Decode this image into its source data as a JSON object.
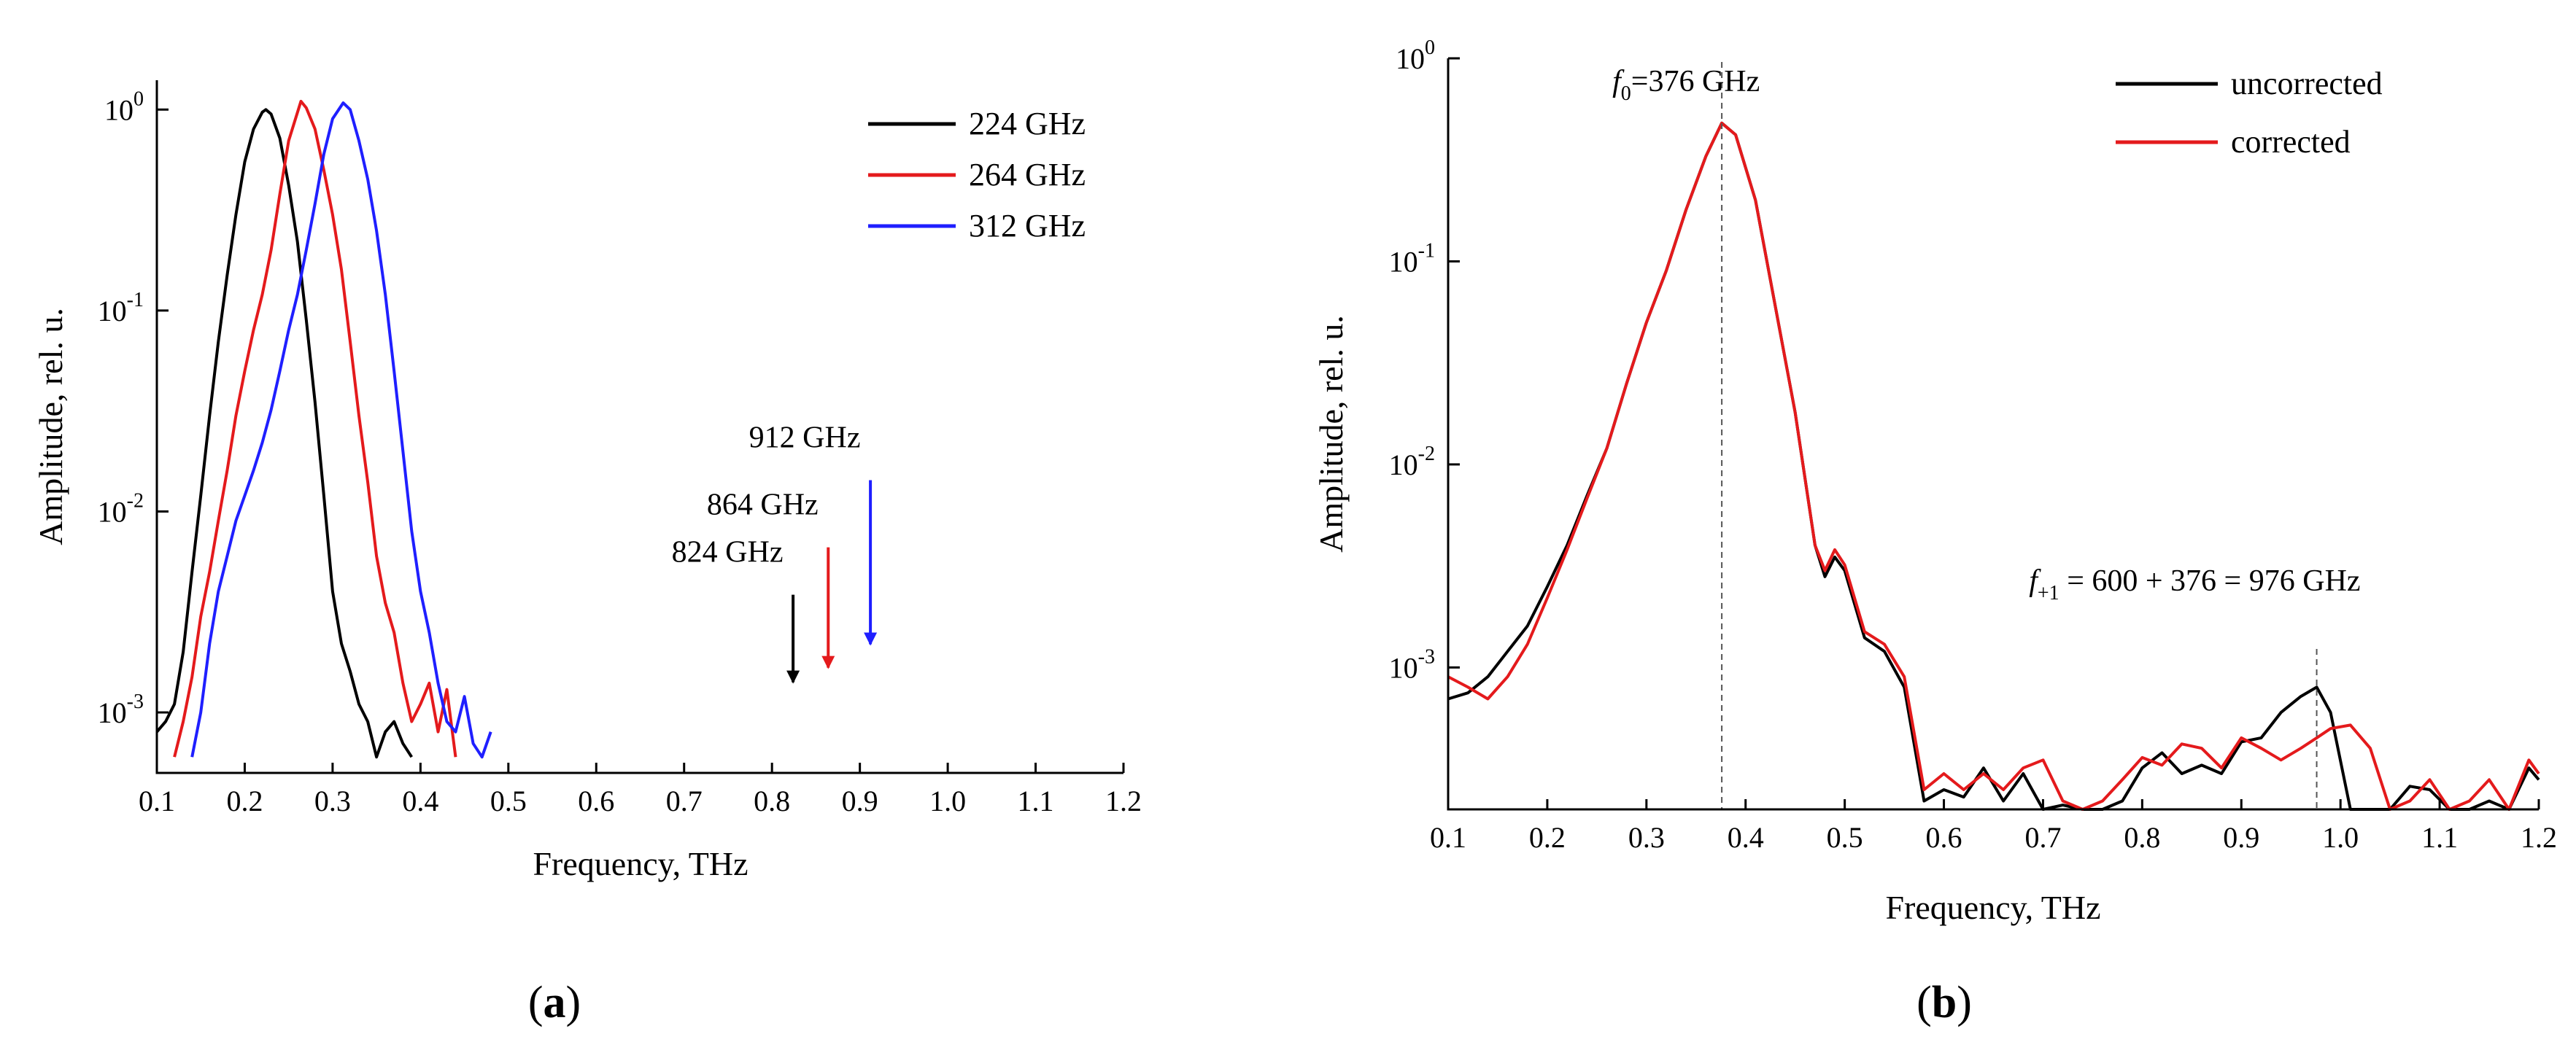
{
  "chart_data": [
    {
      "type": "line",
      "panel_label": "a",
      "xlabel": "Frequency, THz",
      "ylabel": "Amplitude, rel. u.",
      "xlim": [
        0.1,
        1.2
      ],
      "ylim": [
        0.0005,
        1.4
      ],
      "yscale": "log",
      "xticks": [
        "0.1",
        "0.2",
        "0.3",
        "0.4",
        "0.5",
        "0.6",
        "0.7",
        "0.8",
        "0.9",
        "1.0",
        "1.1",
        "1.2"
      ],
      "yticks": [
        {
          "base": "10",
          "exp": "0",
          "value": 1
        },
        {
          "base": "10",
          "exp": "-1",
          "value": 0.1
        },
        {
          "base": "10",
          "exp": "-2",
          "value": 0.01
        },
        {
          "base": "10",
          "exp": "-3",
          "value": 0.001
        }
      ],
      "legend_position": "top-right",
      "series": [
        {
          "name": "224 GHz",
          "color": "#000000",
          "x": [
            0.1,
            0.11,
            0.12,
            0.13,
            0.14,
            0.15,
            0.16,
            0.17,
            0.18,
            0.19,
            0.2,
            0.21,
            0.22,
            0.224,
            0.23,
            0.24,
            0.25,
            0.26,
            0.27,
            0.28,
            0.29,
            0.3,
            0.31,
            0.32,
            0.33,
            0.34,
            0.35,
            0.36,
            0.37,
            0.38,
            0.39
          ],
          "y": [
            0.0008,
            0.0009,
            0.0011,
            0.002,
            0.005,
            0.012,
            0.03,
            0.07,
            0.15,
            0.3,
            0.55,
            0.8,
            0.97,
            1.0,
            0.95,
            0.72,
            0.42,
            0.22,
            0.09,
            0.035,
            0.012,
            0.004,
            0.0022,
            0.0016,
            0.0011,
            0.0009,
            0.0006,
            0.0008,
            0.0009,
            0.0007,
            0.0006
          ]
        },
        {
          "name": "264 GHz",
          "color": "#e41a1c",
          "x": [
            0.12,
            0.13,
            0.14,
            0.15,
            0.16,
            0.17,
            0.18,
            0.19,
            0.2,
            0.21,
            0.22,
            0.23,
            0.24,
            0.25,
            0.264,
            0.27,
            0.28,
            0.29,
            0.3,
            0.31,
            0.32,
            0.33,
            0.34,
            0.35,
            0.36,
            0.37,
            0.38,
            0.39,
            0.4,
            0.41,
            0.42,
            0.43,
            0.44
          ],
          "y": [
            0.0006,
            0.0009,
            0.0015,
            0.003,
            0.005,
            0.009,
            0.016,
            0.03,
            0.05,
            0.08,
            0.12,
            0.2,
            0.38,
            0.7,
            1.1,
            1.02,
            0.8,
            0.5,
            0.3,
            0.16,
            0.07,
            0.03,
            0.014,
            0.006,
            0.0035,
            0.0025,
            0.0014,
            0.0009,
            0.0011,
            0.0014,
            0.0008,
            0.0013,
            0.0006
          ]
        },
        {
          "name": "312 GHz",
          "color": "#1f1fff",
          "x": [
            0.14,
            0.15,
            0.16,
            0.17,
            0.18,
            0.19,
            0.2,
            0.21,
            0.22,
            0.23,
            0.24,
            0.25,
            0.26,
            0.27,
            0.28,
            0.29,
            0.3,
            0.312,
            0.32,
            0.33,
            0.34,
            0.35,
            0.36,
            0.37,
            0.38,
            0.39,
            0.4,
            0.41,
            0.42,
            0.43,
            0.44,
            0.45,
            0.46,
            0.47,
            0.48
          ],
          "y": [
            0.0006,
            0.001,
            0.0022,
            0.004,
            0.006,
            0.009,
            0.012,
            0.016,
            0.022,
            0.032,
            0.05,
            0.08,
            0.12,
            0.2,
            0.34,
            0.6,
            0.9,
            1.08,
            1.0,
            0.7,
            0.45,
            0.25,
            0.12,
            0.05,
            0.02,
            0.008,
            0.004,
            0.0025,
            0.0014,
            0.0009,
            0.0008,
            0.0012,
            0.0007,
            0.0006,
            0.0008
          ]
        }
      ],
      "annotations": [
        {
          "text": "824 GHz",
          "x": 0.824,
          "y": 0.0011,
          "color": "#000000"
        },
        {
          "text": "864 GHz",
          "x": 0.864,
          "y": 0.0013,
          "color": "#e41a1c"
        },
        {
          "text": "912 GHz",
          "x": 0.912,
          "y": 0.0017,
          "color": "#1f1fff"
        }
      ]
    },
    {
      "type": "line",
      "panel_label": "b",
      "xlabel": "Frequency, THz",
      "ylabel": "Amplitude, rel. u.",
      "xlim": [
        0.1,
        1.2
      ],
      "ylim": [
        0.0002,
        1.0
      ],
      "yscale": "log",
      "xticks": [
        "0.1",
        "0.2",
        "0.3",
        "0.4",
        "0.5",
        "0.6",
        "0.7",
        "0.8",
        "0.9",
        "1.0",
        "1.1",
        "1.2"
      ],
      "yticks": [
        {
          "base": "10",
          "exp": "0",
          "value": 1
        },
        {
          "base": "10",
          "exp": "-1",
          "value": 0.1
        },
        {
          "base": "10",
          "exp": "-2",
          "value": 0.01
        },
        {
          "base": "10",
          "exp": "-3",
          "value": 0.001
        }
      ],
      "legend_position": "top-right",
      "series": [
        {
          "name": "uncorrected",
          "color": "#000000",
          "x": [
            0.1,
            0.12,
            0.14,
            0.16,
            0.18,
            0.2,
            0.22,
            0.24,
            0.26,
            0.28,
            0.3,
            0.32,
            0.34,
            0.36,
            0.376,
            0.39,
            0.41,
            0.43,
            0.45,
            0.47,
            0.48,
            0.49,
            0.5,
            0.52,
            0.54,
            0.56,
            0.58,
            0.6,
            0.62,
            0.64,
            0.66,
            0.68,
            0.7,
            0.72,
            0.74,
            0.76,
            0.78,
            0.8,
            0.82,
            0.84,
            0.86,
            0.88,
            0.9,
            0.92,
            0.94,
            0.96,
            0.976,
            0.99,
            1.01,
            1.03,
            1.05,
            1.07,
            1.09,
            1.11,
            1.13,
            1.15,
            1.17,
            1.19,
            1.2
          ],
          "y": [
            0.0007,
            0.00075,
            0.0009,
            0.0012,
            0.0016,
            0.0025,
            0.004,
            0.007,
            0.012,
            0.025,
            0.05,
            0.09,
            0.18,
            0.33,
            0.48,
            0.42,
            0.2,
            0.06,
            0.018,
            0.004,
            0.0028,
            0.0035,
            0.003,
            0.0014,
            0.0012,
            0.0008,
            0.00022,
            0.00025,
            0.00023,
            0.00032,
            0.00022,
            0.0003,
            0.0002,
            0.00021,
            0.0002,
            0.0002,
            0.00022,
            0.00032,
            0.00038,
            0.0003,
            0.00033,
            0.0003,
            0.00043,
            0.00045,
            0.0006,
            0.00072,
            0.0008,
            0.0006,
            0.0002,
            0.0002,
            0.0002,
            0.00026,
            0.00025,
            0.0002,
            0.0002,
            0.00022,
            0.0002,
            0.00032,
            0.00028
          ]
        },
        {
          "name": "corrected",
          "color": "#e41a1c",
          "x": [
            0.1,
            0.12,
            0.14,
            0.16,
            0.18,
            0.2,
            0.22,
            0.24,
            0.26,
            0.28,
            0.3,
            0.32,
            0.34,
            0.36,
            0.376,
            0.39,
            0.41,
            0.43,
            0.45,
            0.47,
            0.48,
            0.49,
            0.5,
            0.52,
            0.54,
            0.56,
            0.58,
            0.6,
            0.62,
            0.64,
            0.66,
            0.68,
            0.7,
            0.72,
            0.74,
            0.76,
            0.78,
            0.8,
            0.82,
            0.84,
            0.86,
            0.88,
            0.9,
            0.92,
            0.94,
            0.96,
            0.976,
            0.99,
            1.01,
            1.03,
            1.05,
            1.07,
            1.09,
            1.11,
            1.13,
            1.15,
            1.17,
            1.19,
            1.2
          ],
          "y": [
            0.0009,
            0.0008,
            0.0007,
            0.0009,
            0.0013,
            0.0022,
            0.0038,
            0.0068,
            0.012,
            0.025,
            0.05,
            0.09,
            0.18,
            0.33,
            0.48,
            0.42,
            0.2,
            0.06,
            0.018,
            0.004,
            0.003,
            0.0038,
            0.0032,
            0.0015,
            0.0013,
            0.0009,
            0.00025,
            0.0003,
            0.00025,
            0.0003,
            0.00025,
            0.00032,
            0.00035,
            0.00022,
            0.0002,
            0.00022,
            0.00028,
            0.00036,
            0.00033,
            0.00042,
            0.0004,
            0.00032,
            0.00045,
            0.0004,
            0.00035,
            0.0004,
            0.00045,
            0.0005,
            0.00052,
            0.0004,
            0.0002,
            0.00022,
            0.00028,
            0.0002,
            0.00022,
            0.00028,
            0.0002,
            0.00035,
            0.0003
          ]
        }
      ],
      "annotations": [
        {
          "sym": "f",
          "sub": "0",
          "rest": "=376 GHz",
          "x": 0.376
        },
        {
          "sym": "f",
          "sub": "+1",
          "rest": " = 600 + 376 = 976 GHz",
          "x": 0.976
        }
      ]
    }
  ]
}
